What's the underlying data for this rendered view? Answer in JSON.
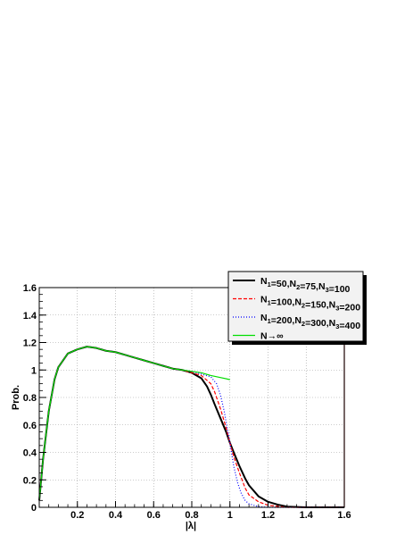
{
  "chart_data": {
    "type": "line",
    "xlabel": "|λ|",
    "ylabel": "Prob.",
    "xlim": [
      0,
      1.6
    ],
    "ylim": [
      0,
      1.6
    ],
    "grid": true,
    "legend_position": "top-right",
    "x_ticks": [
      0.2,
      0.4,
      0.6,
      0.8,
      1,
      1.2,
      1.4,
      1.6
    ],
    "x_tick_labels": [
      "0.2",
      "0.4",
      "0.6",
      "0.8",
      "1",
      "1.2",
      "1.4",
      "1.6"
    ],
    "y_ticks": [
      0,
      0.2,
      0.4,
      0.6,
      0.8,
      1,
      1.2,
      1.4,
      1.6
    ],
    "y_tick_labels": [
      "0",
      "0.2",
      "0.4",
      "0.6",
      "0.8",
      "1",
      "1.2",
      "1.4",
      "1.6"
    ],
    "series": [
      {
        "name": "N1=50,N2=75,N3=100",
        "legend_parts": [
          [
            "N",
            ""
          ],
          [
            "1",
            "sub"
          ],
          [
            "=50,N",
            ""
          ],
          [
            "2",
            "sub"
          ],
          [
            "=75,N",
            ""
          ],
          [
            "3",
            "sub"
          ],
          [
            "=100",
            ""
          ]
        ],
        "color": "#000000",
        "dash": "",
        "width": 2,
        "x": [
          0,
          0.02,
          0.05,
          0.08,
          0.1,
          0.15,
          0.2,
          0.25,
          0.3,
          0.35,
          0.4,
          0.45,
          0.5,
          0.55,
          0.6,
          0.65,
          0.7,
          0.75,
          0.8,
          0.85,
          0.88,
          0.9,
          0.92,
          0.95,
          0.98,
          1.0,
          1.02,
          1.05,
          1.08,
          1.1,
          1.15,
          1.2,
          1.25,
          1.3,
          1.4,
          1.5,
          1.6
        ],
        "y": [
          0.05,
          0.35,
          0.7,
          0.93,
          1.02,
          1.12,
          1.15,
          1.17,
          1.16,
          1.14,
          1.13,
          1.11,
          1.09,
          1.07,
          1.05,
          1.03,
          1.01,
          1.0,
          0.98,
          0.94,
          0.88,
          0.82,
          0.75,
          0.65,
          0.55,
          0.47,
          0.4,
          0.3,
          0.21,
          0.16,
          0.08,
          0.04,
          0.02,
          0.005,
          0,
          0,
          0
        ]
      },
      {
        "name": "N1=100,N2=150,N3=200",
        "legend_parts": [
          [
            "N",
            ""
          ],
          [
            "1",
            "sub"
          ],
          [
            "=100,N",
            ""
          ],
          [
            "2",
            "sub"
          ],
          [
            "=150,N",
            ""
          ],
          [
            "3",
            "sub"
          ],
          [
            "=200",
            ""
          ]
        ],
        "color": "#ff0000",
        "dash": "4,2",
        "width": 1.2,
        "x": [
          0,
          0.02,
          0.05,
          0.08,
          0.1,
          0.15,
          0.2,
          0.25,
          0.3,
          0.35,
          0.4,
          0.45,
          0.5,
          0.55,
          0.6,
          0.65,
          0.7,
          0.75,
          0.8,
          0.85,
          0.9,
          0.92,
          0.95,
          0.98,
          1.0,
          1.02,
          1.05,
          1.08,
          1.1,
          1.15,
          1.2,
          1.3,
          1.4,
          1.5,
          1.6
        ],
        "y": [
          0.05,
          0.35,
          0.7,
          0.93,
          1.02,
          1.12,
          1.15,
          1.17,
          1.16,
          1.14,
          1.13,
          1.11,
          1.09,
          1.07,
          1.05,
          1.03,
          1.01,
          1.0,
          0.98,
          0.96,
          0.9,
          0.84,
          0.72,
          0.58,
          0.47,
          0.37,
          0.25,
          0.14,
          0.09,
          0.04,
          0.015,
          0,
          0,
          0,
          0
        ]
      },
      {
        "name": "N1=200,N2=300,N3=400",
        "legend_parts": [
          [
            "N",
            ""
          ],
          [
            "1",
            "sub"
          ],
          [
            "=200,N",
            ""
          ],
          [
            "2",
            "sub"
          ],
          [
            "=300,N",
            ""
          ],
          [
            "3",
            "sub"
          ],
          [
            "=400",
            ""
          ]
        ],
        "color": "#0000ff",
        "dash": "1,2",
        "width": 1.2,
        "x": [
          0,
          0.02,
          0.05,
          0.08,
          0.1,
          0.15,
          0.2,
          0.25,
          0.3,
          0.35,
          0.4,
          0.45,
          0.5,
          0.55,
          0.6,
          0.65,
          0.7,
          0.75,
          0.8,
          0.85,
          0.9,
          0.93,
          0.95,
          0.97,
          1.0,
          1.02,
          1.04,
          1.06,
          1.08,
          1.1,
          1.15,
          1.2,
          1.3,
          1.4,
          1.5,
          1.6
        ],
        "y": [
          0.05,
          0.35,
          0.7,
          0.93,
          1.02,
          1.12,
          1.15,
          1.17,
          1.16,
          1.14,
          1.13,
          1.11,
          1.09,
          1.07,
          1.05,
          1.03,
          1.01,
          1.0,
          0.99,
          0.97,
          0.95,
          0.9,
          0.82,
          0.7,
          0.47,
          0.3,
          0.18,
          0.1,
          0.05,
          0.025,
          0.005,
          0,
          0,
          0,
          0,
          0
        ]
      },
      {
        "name": "N→∞",
        "legend_parts": [
          [
            "N→∞",
            ""
          ]
        ],
        "color": "#00dd00",
        "dash": "",
        "width": 1.2,
        "x": [
          0,
          0.02,
          0.05,
          0.08,
          0.1,
          0.15,
          0.2,
          0.25,
          0.3,
          0.35,
          0.4,
          0.45,
          0.5,
          0.55,
          0.6,
          0.65,
          0.7,
          0.75,
          0.8,
          0.85,
          0.9,
          0.95,
          1.0
        ],
        "y": [
          0.05,
          0.35,
          0.7,
          0.93,
          1.02,
          1.12,
          1.15,
          1.17,
          1.16,
          1.14,
          1.13,
          1.11,
          1.09,
          1.07,
          1.05,
          1.03,
          1.01,
          1.0,
          0.99,
          0.98,
          0.96,
          0.945,
          0.93
        ]
      }
    ]
  }
}
